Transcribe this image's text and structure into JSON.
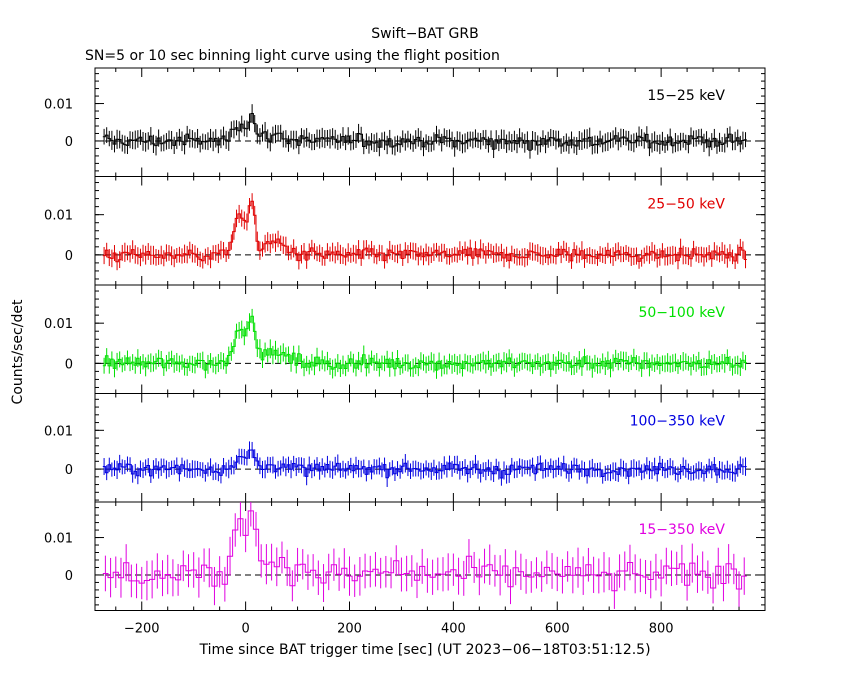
{
  "chart_data": {
    "type": "line",
    "title": "Swift−BAT GRB",
    "subtitle": "SN=5 or 10 sec binning light curve using the flight position",
    "xlabel": "Time since BAT trigger time [sec] (UT 2023−06−18T03:51:12.5)",
    "ylabel": "Counts/sec/det",
    "xlim": [
      -290,
      1000
    ],
    "x_ticks": [
      "−200",
      "0",
      "200",
      "400",
      "600",
      "800"
    ],
    "x_tick_values": [
      -200,
      0,
      200,
      400,
      600,
      800
    ],
    "y_tick_labels": [
      "0.01",
      "0"
    ],
    "y_tick_values": [
      0.01,
      0
    ],
    "grid": false,
    "panels": [
      {
        "name": "15−25 keV",
        "color": "#000000",
        "ylim": [
          -0.0095,
          0.0195
        ],
        "noise": 0.0022,
        "burst": 0.0065,
        "step": 5
      },
      {
        "name": "25−50 keV",
        "color": "#e00000",
        "ylim": [
          -0.0075,
          0.0195
        ],
        "noise": 0.002,
        "burst": 0.0125,
        "step": 5
      },
      {
        "name": "50−100 keV",
        "color": "#00e000",
        "ylim": [
          -0.0075,
          0.0195
        ],
        "noise": 0.002,
        "burst": 0.012,
        "step": 5
      },
      {
        "name": "100−350 keV",
        "color": "#0000e0",
        "ylim": [
          -0.0085,
          0.0195
        ],
        "noise": 0.002,
        "burst": 0.004,
        "step": 5
      },
      {
        "name": "15−350 keV",
        "color": "#e000e0",
        "ylim": [
          -0.0095,
          0.0195
        ],
        "noise": 0.0045,
        "burst": 0.02,
        "step": 10
      }
    ]
  }
}
